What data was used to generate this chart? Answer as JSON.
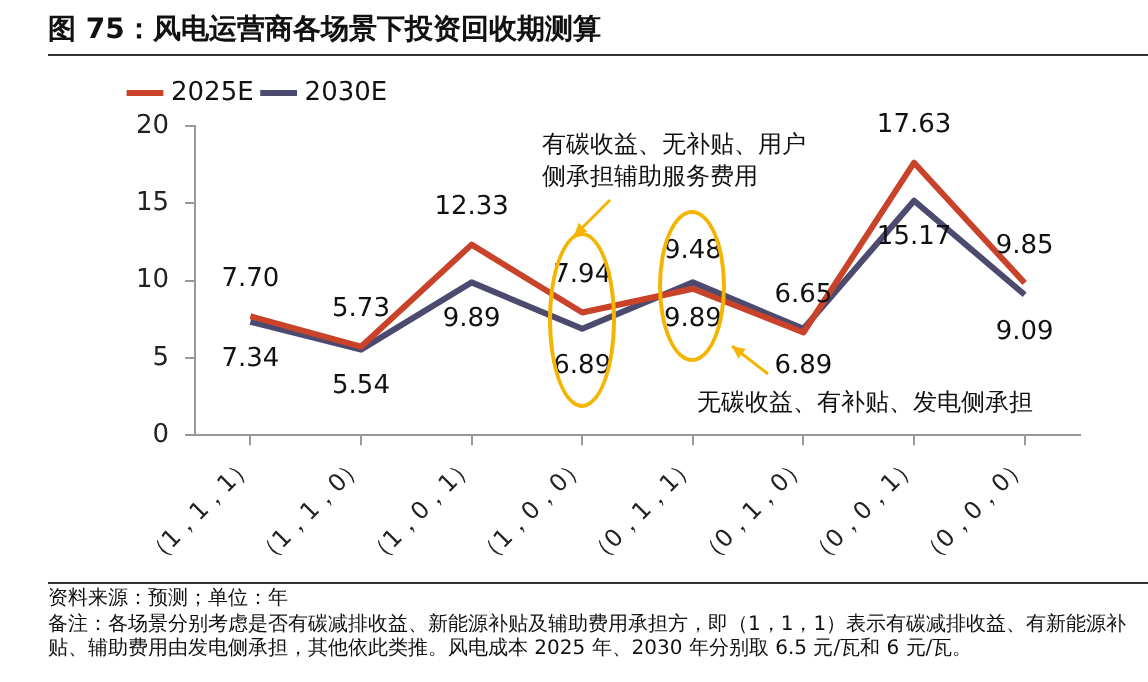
{
  "chart_data": {
    "type": "line",
    "title": "图 75：风电运营商各场景下投资回收期测算",
    "categories": [
      "（1，1，1）",
      "（1，1，0）",
      "（1，0，1）",
      "（1，0，0）",
      "（0，1，1）",
      "（0，1，0）",
      "（0，0，1）",
      "（0，0，0）"
    ],
    "series": [
      {
        "name": "2025E",
        "color": "#c9432a",
        "values": [
          7.7,
          5.73,
          12.33,
          7.94,
          9.48,
          6.65,
          17.63,
          9.85
        ],
        "value_labels": [
          "7.70",
          "5.73",
          "12.33",
          "7.94",
          "9.48",
          "6.65",
          "17.63",
          "9.85"
        ]
      },
      {
        "name": "2030E",
        "color": "#4c4a6f",
        "values": [
          7.34,
          5.54,
          9.89,
          6.89,
          9.89,
          6.89,
          15.17,
          9.09
        ],
        "value_labels": [
          "7.34",
          "5.54",
          "9.89",
          "6.89",
          "9.89",
          "6.89",
          "15.17",
          "9.09"
        ]
      }
    ],
    "ylim": [
      0,
      20
    ],
    "yticks": [
      0,
      5,
      10,
      15,
      20
    ],
    "grid": false,
    "legend": "top left",
    "marker": "none",
    "line_style": "solid",
    "annotations": [
      "有碳收益、无补贴、用户侧承担辅助服务费用",
      "无碳收益、有补贴、发电侧承担",
      "资料来源：预测；单位：年",
      "备注：各场景分别考虑是否有碳减排收益、新能源补贴及辅助费用承担方，即（1，1，1）表示有碳减排收益、有新能源补贴、辅助费用由发电侧承担，其他依此类推。风电成本 2025 年、2030 年分别取 6.5 元/瓦和 6 元/瓦。"
    ]
  }
}
